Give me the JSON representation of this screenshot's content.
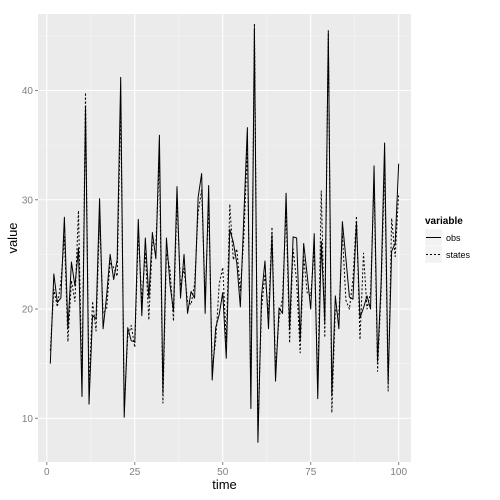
{
  "chart_data": {
    "type": "line",
    "title": "",
    "xlabel": "time",
    "ylabel": "value",
    "xlim": [
      -2.5,
      103.5
    ],
    "ylim": [
      6,
      47
    ],
    "xticks": [
      0,
      25,
      50,
      75,
      100
    ],
    "yticks": [
      10,
      20,
      30,
      40
    ],
    "grid": true,
    "legend": {
      "title": "variable",
      "placement": "right",
      "entries": [
        {
          "name": "obs",
          "linetype": "solid"
        },
        {
          "name": "states",
          "linetype": "dashed"
        }
      ]
    },
    "colors": {
      "panel_background": "#ebebeb",
      "grid_major": "#ffffff",
      "grid_minor": "#f5f5f5",
      "line": "#000000",
      "tick_label": "#7f7f7f"
    },
    "series": [
      {
        "name": "obs",
        "linetype": "solid",
        "x": [
          1,
          2,
          3,
          4,
          5,
          6,
          7,
          8,
          9,
          10,
          11,
          12,
          13,
          14,
          15,
          16,
          17,
          18,
          19,
          20,
          21,
          22,
          23,
          24,
          25,
          26,
          27,
          28,
          29,
          30,
          31,
          32,
          33,
          34,
          35,
          36,
          37,
          38,
          39,
          40,
          41,
          42,
          43,
          44,
          45,
          46,
          47,
          48,
          49,
          50,
          51,
          52,
          53,
          54,
          55,
          56,
          57,
          58,
          59,
          60,
          61,
          62,
          63,
          64,
          65,
          66,
          67,
          68,
          69,
          70,
          71,
          72,
          73,
          74,
          75,
          76,
          77,
          78,
          79,
          80,
          81,
          82,
          83,
          84,
          85,
          86,
          87,
          88,
          89,
          90,
          91,
          92,
          93,
          94,
          95,
          96,
          97,
          98,
          99,
          100
        ],
        "y": [
          15.0,
          23.2,
          20.6,
          21.0,
          28.4,
          18.2,
          24.3,
          22.1,
          25.6,
          12.0,
          38.5,
          11.3,
          19.4,
          19.1,
          30.1,
          18.2,
          21.2,
          25.0,
          22.7,
          24.5,
          41.2,
          10.1,
          18.3,
          17.1,
          17.0,
          28.2,
          19.4,
          26.5,
          21.0,
          27.0,
          24.6,
          35.9,
          12.3,
          26.5,
          22.3,
          19.8,
          31.2,
          21.0,
          25.0,
          19.6,
          21.6,
          21.0,
          30.2,
          32.4,
          19.6,
          31.3,
          13.5,
          18.3,
          19.5,
          21.5,
          15.5,
          27.3,
          26.1,
          24.2,
          20.2,
          28.5,
          36.6,
          10.9,
          45.7,
          7.8,
          21.1,
          24.4,
          18.2,
          26.8,
          13.4,
          20.1,
          19.6,
          30.6,
          18.2,
          26.6,
          26.5,
          17.1,
          26.0,
          23.1,
          20.0,
          26.9,
          11.8,
          26.2,
          18.8,
          45.3,
          12.2,
          21.2,
          18.2,
          28.0,
          24.6,
          21.1,
          20.9,
          28.0,
          19.2,
          20.1,
          21.2,
          20.0,
          33.1,
          15.2,
          22.4,
          35.2,
          13.2,
          25.3,
          26.0,
          33.3
        ]
      },
      {
        "name": "states",
        "linetype": "dashed",
        "x": [
          1,
          2,
          3,
          4,
          5,
          6,
          7,
          8,
          9,
          10,
          11,
          12,
          13,
          14,
          15,
          16,
          17,
          18,
          19,
          20,
          21,
          22,
          23,
          24,
          25,
          26,
          27,
          28,
          29,
          30,
          31,
          32,
          33,
          34,
          35,
          36,
          37,
          38,
          39,
          40,
          41,
          42,
          43,
          44,
          45,
          46,
          47,
          48,
          49,
          50,
          51,
          52,
          53,
          54,
          55,
          56,
          57,
          58,
          59,
          60,
          61,
          62,
          63,
          64,
          65,
          66,
          67,
          68,
          69,
          70,
          71,
          72,
          73,
          74,
          75,
          76,
          77,
          78,
          79,
          80,
          81,
          82,
          83,
          84,
          85,
          86,
          87,
          88,
          89,
          90,
          91,
          92,
          93,
          94,
          95,
          96,
          97,
          98,
          99,
          100
        ],
        "y": [
          16.2,
          21.8,
          20.2,
          22.5,
          26.6,
          17.0,
          22.6,
          20.7,
          29.0,
          13.0,
          39.8,
          12.7,
          20.7,
          18.0,
          28.2,
          19.6,
          20.0,
          24.3,
          23.8,
          23.0,
          38.7,
          11.1,
          17.4,
          18.5,
          16.5,
          27.1,
          20.7,
          25.2,
          19.0,
          26.1,
          25.9,
          33.7,
          11.4,
          25.1,
          23.7,
          18.9,
          29.8,
          22.1,
          23.7,
          20.7,
          20.4,
          22.3,
          28.8,
          30.9,
          21.0,
          29.7,
          14.6,
          17.1,
          22.3,
          23.8,
          17.0,
          29.6,
          24.5,
          25.5,
          21.7,
          26.6,
          34.9,
          12.0,
          46.1,
          8.7,
          20.0,
          23.2,
          19.5,
          27.5,
          14.5,
          19.1,
          21.1,
          29.1,
          16.9,
          25.5,
          22.5,
          16.0,
          24.8,
          21.5,
          21.2,
          25.5,
          13.0,
          30.8,
          17.4,
          45.6,
          10.5,
          20.0,
          19.5,
          26.9,
          20.8,
          20.0,
          22.7,
          28.5,
          17.2,
          25.1,
          20.0,
          21.5,
          31.6,
          14.3,
          21.5,
          33.0,
          12.5,
          28.3,
          24.8,
          30.6
        ]
      }
    ]
  }
}
